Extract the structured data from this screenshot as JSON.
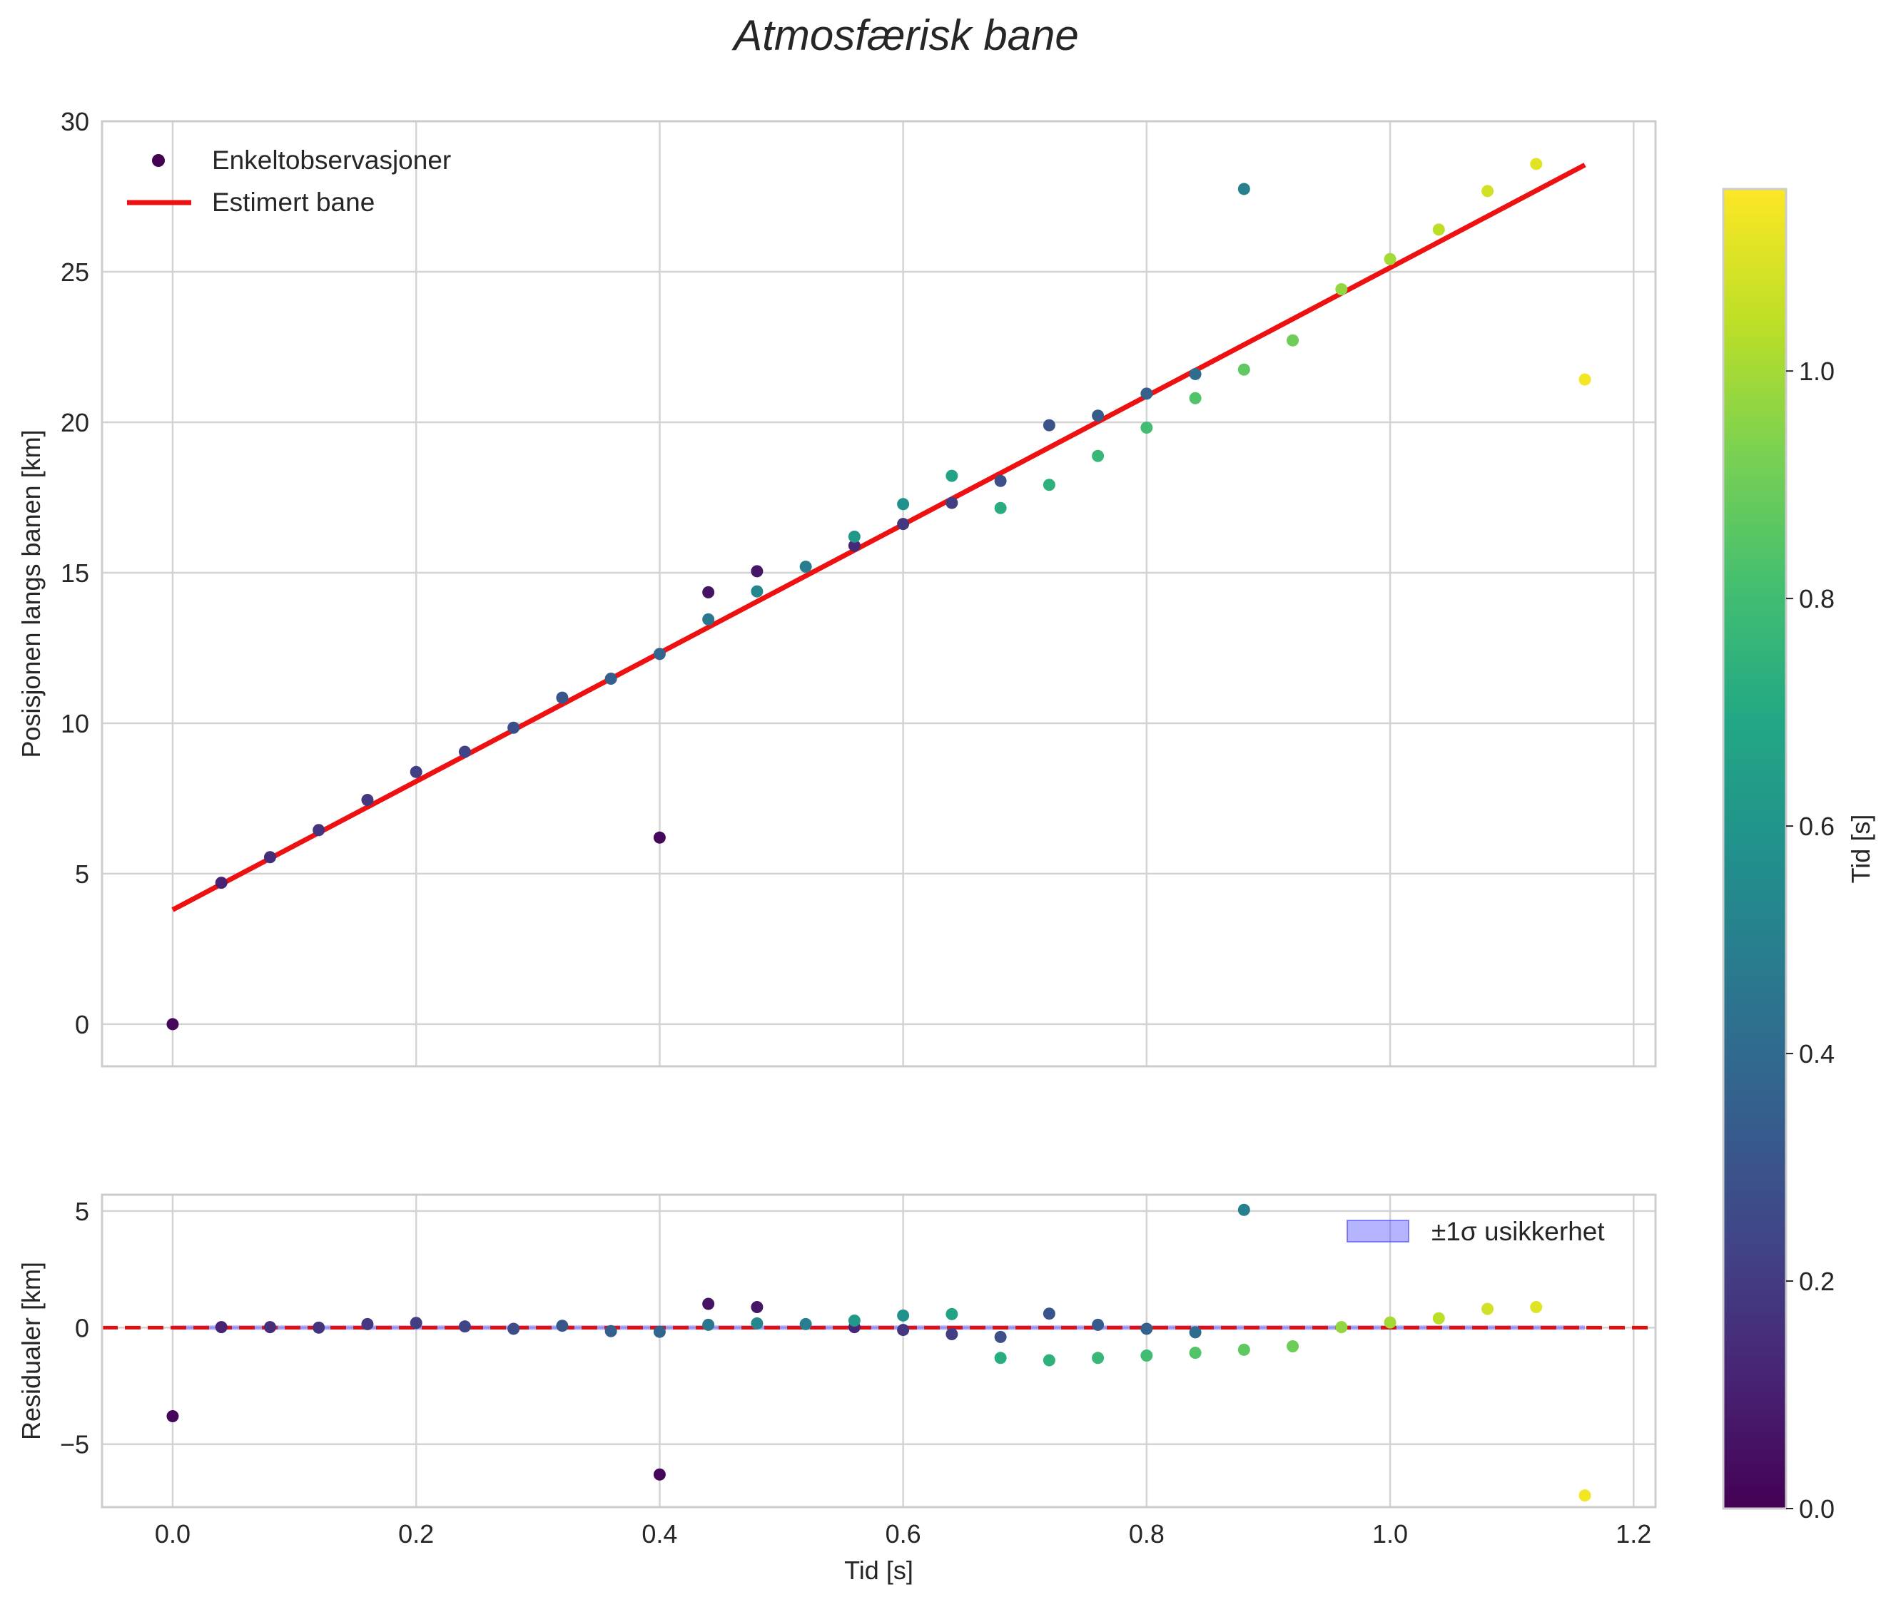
{
  "chart_data": [
    {
      "type": "scatter",
      "title": "Atmosfærisk bane",
      "xlabel": "",
      "ylabel": "Posisjonen langs banen [km]",
      "xlim": [
        -0.058,
        1.218
      ],
      "ylim": [
        -1.4,
        30
      ],
      "xticks": [
        0.0,
        0.2,
        0.4,
        0.6,
        0.8,
        1.0,
        1.2
      ],
      "yticks": [
        0,
        5,
        10,
        15,
        20,
        25,
        30
      ],
      "grid": true,
      "legend": {
        "placement": "top-left",
        "entries": [
          "Enkeltobservasjoner",
          "Estimert bane"
        ]
      },
      "series": [
        {
          "name": "Enkeltobservasjoner",
          "kind": "scatter",
          "colored_by": "Tid [s]",
          "x": [
            0.0,
            0.04,
            0.08,
            0.12,
            0.16,
            0.2,
            0.24,
            0.28,
            0.32,
            0.36,
            0.4,
            0.4,
            0.44,
            0.44,
            0.48,
            0.48,
            0.52,
            0.56,
            0.56,
            0.6,
            0.6,
            0.64,
            0.64,
            0.68,
            0.68,
            0.72,
            0.72,
            0.76,
            0.76,
            0.8,
            0.8,
            0.84,
            0.84,
            0.88,
            0.88,
            0.92,
            0.96,
            1.0,
            1.04,
            1.08,
            1.12,
            1.16
          ],
          "y": [
            0.0,
            4.7,
            5.55,
            6.45,
            7.45,
            8.38,
            9.05,
            9.85,
            10.85,
            11.48,
            6.2,
            12.3,
            14.35,
            13.45,
            15.05,
            14.38,
            15.2,
            15.9,
            16.2,
            16.62,
            17.28,
            17.32,
            18.22,
            18.05,
            17.15,
            19.9,
            17.92,
            20.22,
            18.88,
            20.95,
            19.82,
            21.6,
            20.8,
            27.75,
            21.75,
            22.72,
            24.42,
            25.42,
            26.4,
            27.68,
            28.58,
            21.42
          ],
          "c": [
            0.02,
            0.11,
            0.15,
            0.17,
            0.19,
            0.21,
            0.23,
            0.27,
            0.31,
            0.35,
            0.02,
            0.37,
            0.06,
            0.46,
            0.07,
            0.53,
            0.49,
            0.13,
            0.62,
            0.18,
            0.58,
            0.21,
            0.67,
            0.28,
            0.72,
            0.3,
            0.74,
            0.33,
            0.77,
            0.36,
            0.8,
            0.41,
            0.84,
            0.5,
            0.87,
            0.9,
            0.97,
            1.0,
            1.04,
            1.08,
            1.11,
            1.14
          ]
        },
        {
          "name": "Estimert bane",
          "kind": "line",
          "color": "#ee1111",
          "x": [
            0.0,
            1.16
          ],
          "y": [
            3.8,
            28.55
          ]
        }
      ]
    },
    {
      "type": "scatter",
      "title": "",
      "xlabel": "Tid [s]",
      "ylabel": "Residualer [km]",
      "xlim": [
        -0.058,
        1.218
      ],
      "ylim": [
        -7.7,
        5.7
      ],
      "xticks": [
        0.0,
        0.2,
        0.4,
        0.6,
        0.8,
        1.0,
        1.2
      ],
      "yticks": [
        -5,
        0,
        5
      ],
      "grid": true,
      "legend": {
        "placement": "top-right",
        "entries": [
          "±1σ usikkerhet"
        ]
      },
      "band": {
        "name": "±1σ usikkerhet",
        "x": [
          0.0,
          1.16
        ],
        "lower": -0.05,
        "upper": 0.05,
        "color": "#4444ff"
      },
      "reference_line": {
        "y": 0,
        "color": "#dd1111",
        "style": "dashed"
      },
      "series": [
        {
          "name": "Residualer",
          "kind": "scatter",
          "x": [
            0.0,
            0.04,
            0.08,
            0.12,
            0.16,
            0.2,
            0.24,
            0.28,
            0.32,
            0.36,
            0.4,
            0.4,
            0.44,
            0.44,
            0.48,
            0.48,
            0.52,
            0.56,
            0.56,
            0.6,
            0.6,
            0.64,
            0.64,
            0.68,
            0.68,
            0.72,
            0.72,
            0.76,
            0.76,
            0.8,
            0.8,
            0.84,
            0.84,
            0.88,
            0.88,
            0.92,
            0.96,
            1.0,
            1.04,
            1.08,
            1.12,
            1.16
          ],
          "y": [
            -3.8,
            0.02,
            0.02,
            0.0,
            0.15,
            0.2,
            0.05,
            -0.05,
            0.08,
            -0.15,
            -6.3,
            -0.18,
            1.02,
            0.12,
            0.88,
            0.18,
            0.15,
            0.02,
            0.3,
            -0.1,
            0.52,
            -0.28,
            0.58,
            -0.4,
            -1.3,
            0.6,
            -1.4,
            0.12,
            -1.3,
            -0.05,
            -1.2,
            -0.2,
            -1.08,
            5.05,
            -0.95,
            -0.8,
            0.02,
            0.22,
            0.4,
            0.8,
            0.88,
            -7.2
          ],
          "c": [
            0.02,
            0.11,
            0.15,
            0.17,
            0.19,
            0.21,
            0.23,
            0.27,
            0.31,
            0.35,
            0.02,
            0.37,
            0.06,
            0.46,
            0.07,
            0.53,
            0.49,
            0.13,
            0.62,
            0.18,
            0.58,
            0.21,
            0.67,
            0.28,
            0.72,
            0.3,
            0.74,
            0.33,
            0.77,
            0.36,
            0.8,
            0.41,
            0.84,
            0.5,
            0.87,
            0.9,
            0.97,
            1.0,
            1.04,
            1.08,
            1.11,
            1.14
          ]
        }
      ]
    },
    {
      "type": "colorbar",
      "label": "Tid [s]",
      "colormap": "viridis",
      "range": [
        0.0,
        1.16
      ],
      "ticks": [
        0.0,
        0.2,
        0.4,
        0.6,
        0.8,
        1.0
      ]
    }
  ]
}
